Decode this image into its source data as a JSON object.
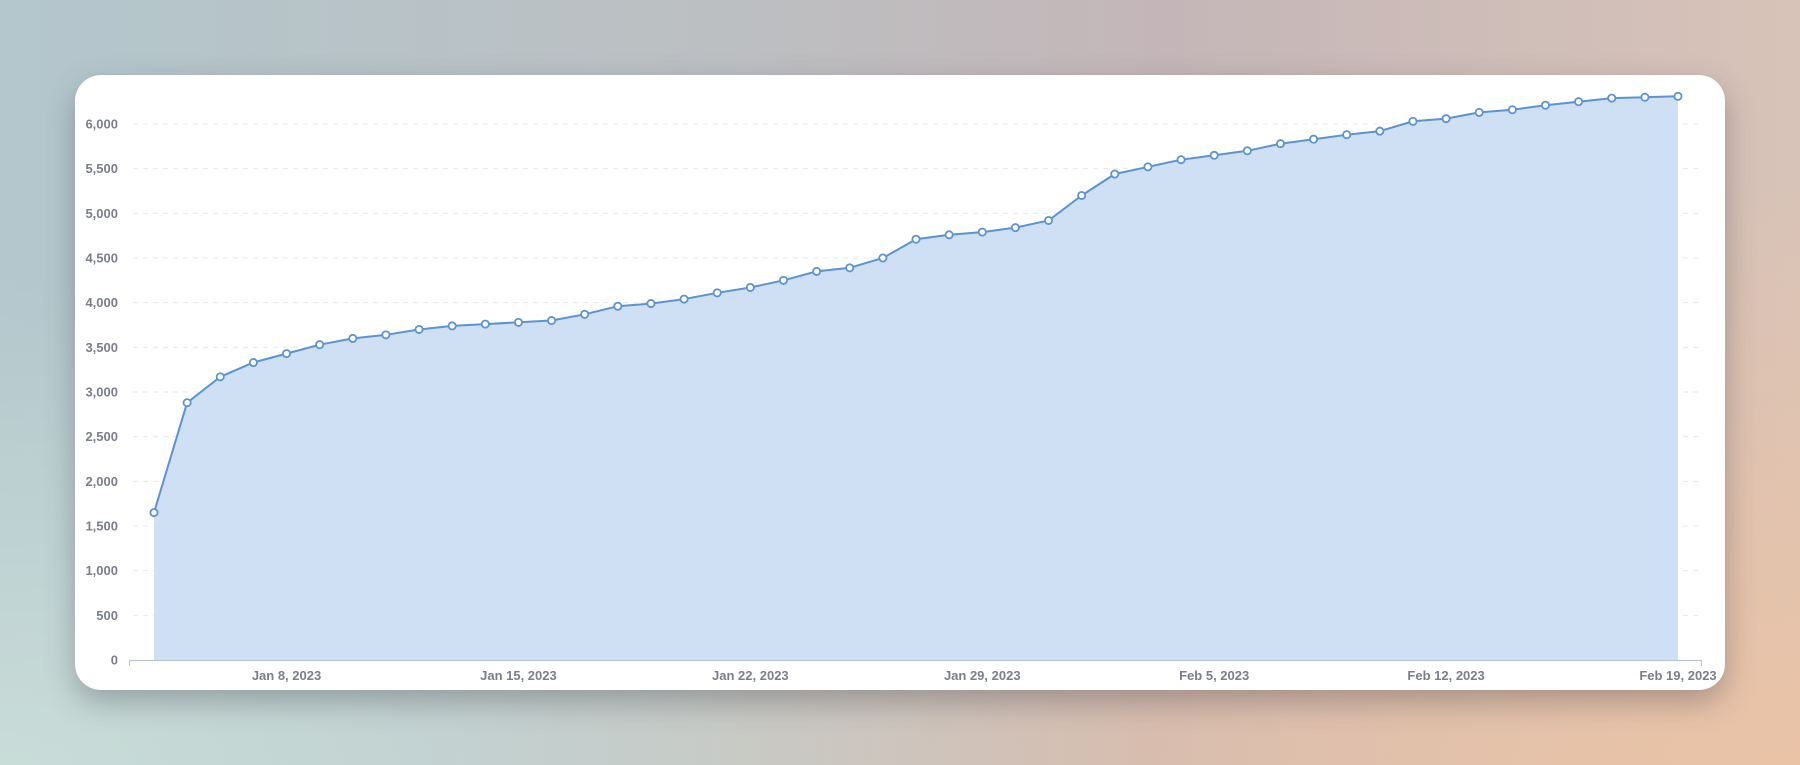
{
  "chart_data": {
    "type": "area",
    "title": "",
    "xlabel": "",
    "ylabel": "",
    "ylim": [
      0,
      6300
    ],
    "yticks": [
      0,
      500,
      1000,
      1500,
      2000,
      2500,
      3000,
      3500,
      4000,
      4500,
      5000,
      5500,
      6000
    ],
    "ytick_labels": [
      "0",
      "500",
      "1,000",
      "1,500",
      "2,000",
      "2,500",
      "3,000",
      "3,500",
      "4,000",
      "4,500",
      "5,000",
      "5,500",
      "6,000"
    ],
    "xticks": [
      {
        "date": "2023-01-08",
        "label": "Jan 8, 2023"
      },
      {
        "date": "2023-01-15",
        "label": "Jan 15, 2023"
      },
      {
        "date": "2023-01-22",
        "label": "Jan 22, 2023"
      },
      {
        "date": "2023-01-29",
        "label": "Jan 29, 2023"
      },
      {
        "date": "2023-02-05",
        "label": "Feb 5, 2023"
      },
      {
        "date": "2023-02-12",
        "label": "Feb 12, 2023"
      },
      {
        "date": "2023-02-19",
        "label": "Feb 19, 2023"
      }
    ],
    "xlim": [
      "2023-01-04",
      "2023-02-19"
    ],
    "grid": "horizontal dashed",
    "legend": "none",
    "colors": {
      "line": "#5b93d3",
      "fill": "#cfdff4",
      "grid": "#e8eaee",
      "axis": "#b8c4d6"
    },
    "series": [
      {
        "x": [
          "2023-01-04",
          "2023-01-05",
          "2023-01-06",
          "2023-01-07",
          "2023-01-08",
          "2023-01-09",
          "2023-01-10",
          "2023-01-11",
          "2023-01-12",
          "2023-01-13",
          "2023-01-14",
          "2023-01-15",
          "2023-01-16",
          "2023-01-17",
          "2023-01-18",
          "2023-01-19",
          "2023-01-20",
          "2023-01-21",
          "2023-01-22",
          "2023-01-23",
          "2023-01-24",
          "2023-01-25",
          "2023-01-26",
          "2023-01-27",
          "2023-01-28",
          "2023-01-29",
          "2023-01-30",
          "2023-01-31",
          "2023-02-01",
          "2023-02-02",
          "2023-02-03",
          "2023-02-04",
          "2023-02-05",
          "2023-02-06",
          "2023-02-07",
          "2023-02-08",
          "2023-02-09",
          "2023-02-10",
          "2023-02-11",
          "2023-02-12",
          "2023-02-13",
          "2023-02-14",
          "2023-02-15",
          "2023-02-16",
          "2023-02-17",
          "2023-02-18",
          "2023-02-19"
        ],
        "values": [
          1650,
          2880,
          3170,
          3330,
          3430,
          3530,
          3600,
          3640,
          3700,
          3740,
          3760,
          3780,
          3800,
          3870,
          3960,
          3990,
          4040,
          4110,
          4170,
          4250,
          4350,
          4390,
          4500,
          4710,
          4760,
          4790,
          4840,
          4920,
          5200,
          5440,
          5520,
          5600,
          5650,
          5700,
          5780,
          5830,
          5880,
          5920,
          6030,
          6060,
          6130,
          6160,
          6210,
          6250,
          6290,
          6300,
          6310
        ]
      }
    ]
  }
}
